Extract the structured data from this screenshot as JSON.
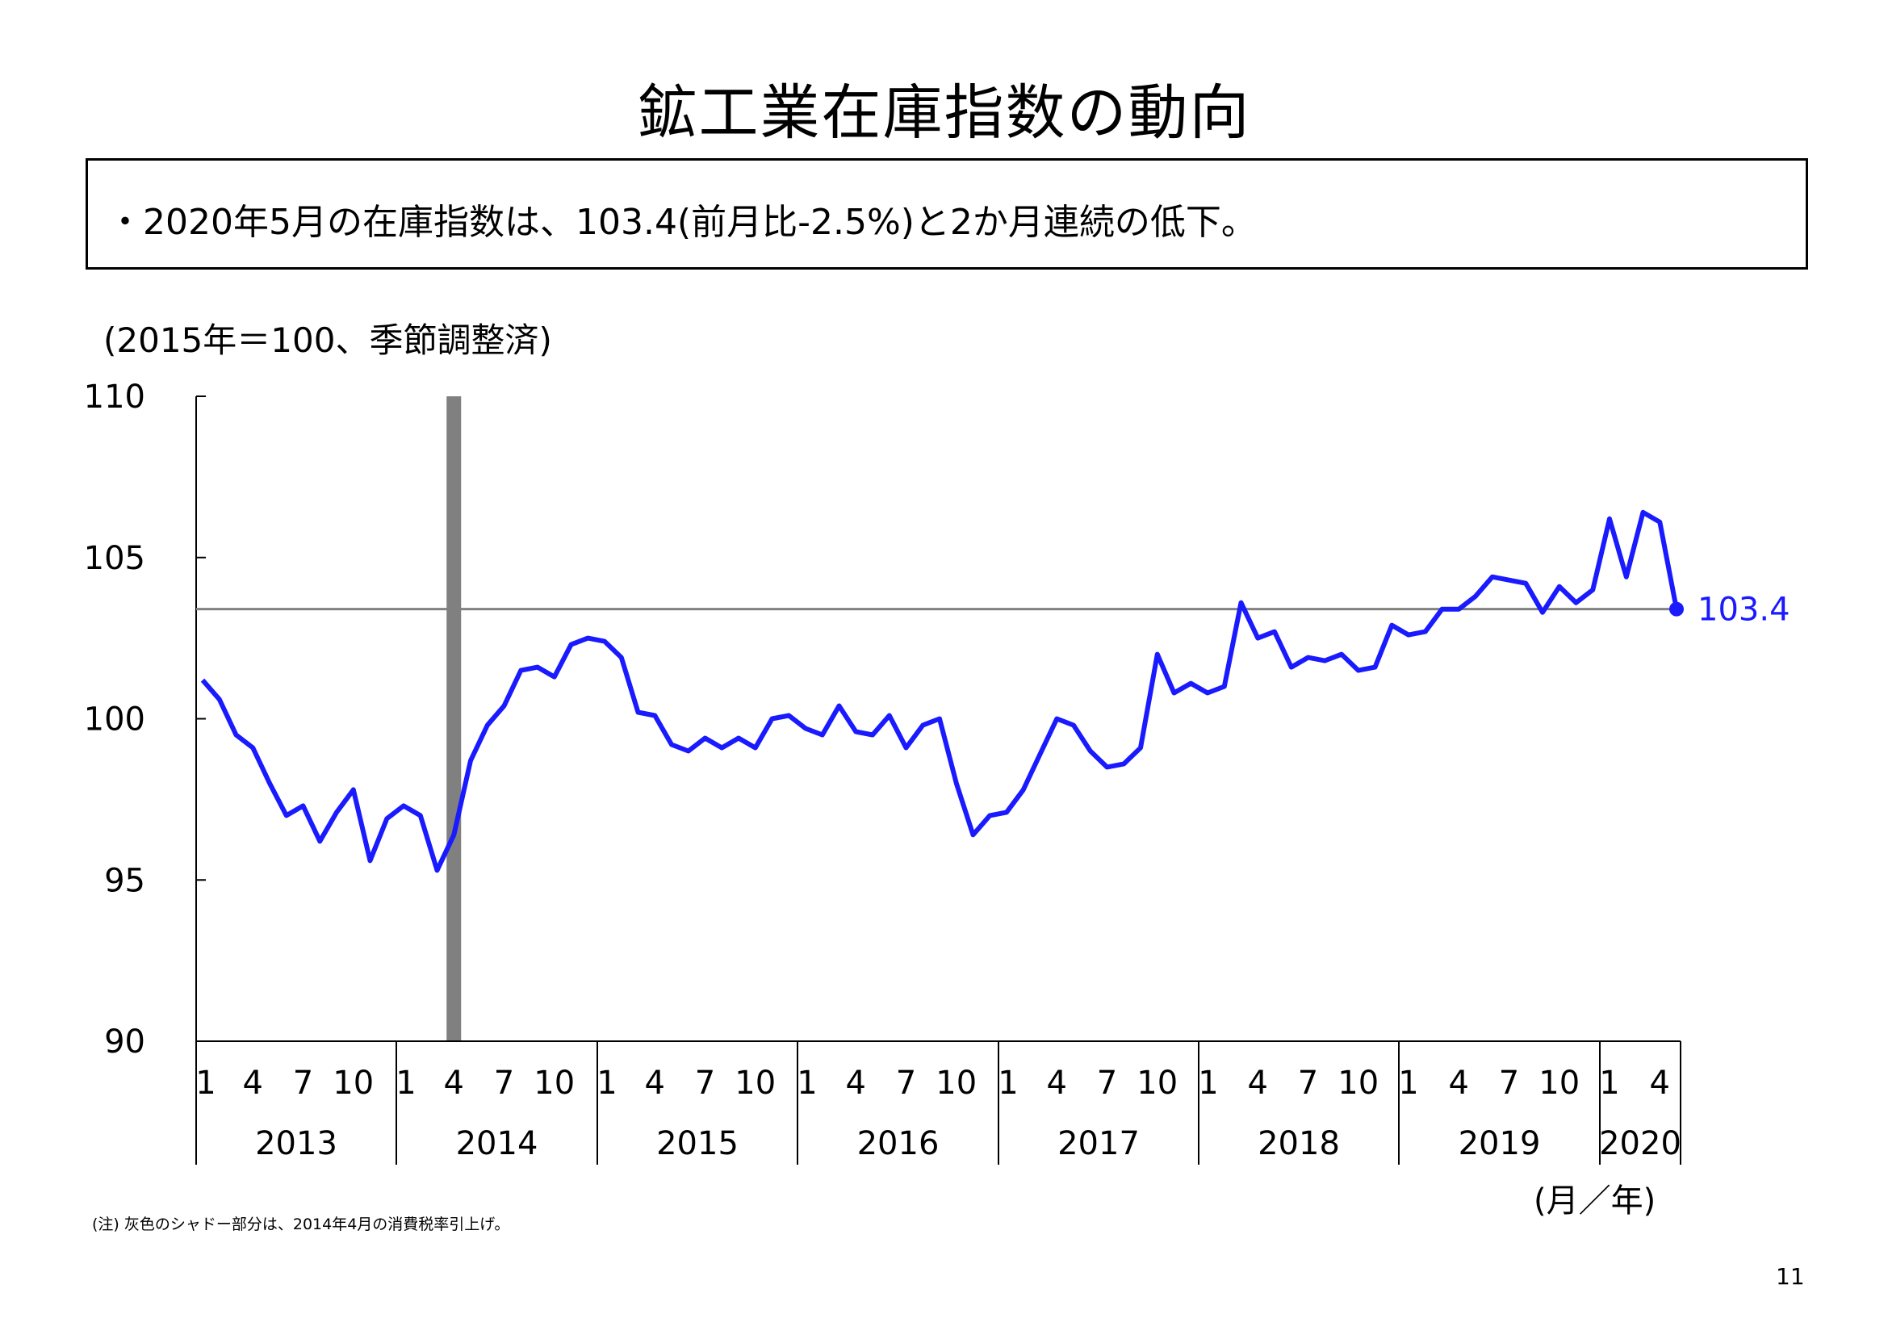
{
  "page": {
    "title": "鉱工業在庫指数の動向",
    "summary": "・2020年5月の在庫指数は、103.4(前月比-2.5%)と2か月連続の低下。",
    "unit_label": "(2015年＝100、季節調整済)",
    "x_unit_label": "(月／年)",
    "note": "(注) 灰色のシャドー部分は、2014年4月の消費税率引上げ。",
    "page_number": "11"
  },
  "colors": {
    "series_line": "#1a1aff",
    "reference_line": "#808080",
    "shade": "#808080",
    "axis": "#000000"
  },
  "chart_data": {
    "type": "line",
    "ylim": [
      90,
      110
    ],
    "yticks": [
      90,
      95,
      100,
      105,
      110
    ],
    "month_tick_labels": [
      "1",
      "4",
      "7",
      "10"
    ],
    "years": [
      "2013",
      "2014",
      "2015",
      "2016",
      "2017",
      "2018",
      "2019",
      "2020"
    ],
    "shade_period": "2014-04",
    "reference_value": 103.4,
    "end_label": "103.4",
    "series": [
      {
        "start": "2013-01",
        "values": [
          101.2,
          100.6,
          99.5,
          99.1,
          98.0,
          97.0,
          97.3,
          96.2,
          97.1,
          97.8,
          95.6,
          96.9,
          97.3,
          97.0,
          95.3,
          96.4,
          98.7,
          99.8,
          100.4,
          101.5,
          101.6,
          101.3,
          102.3,
          102.5,
          102.4,
          101.9,
          100.2,
          100.1,
          99.2,
          99.0,
          99.4,
          99.1,
          99.4,
          99.1,
          100.0,
          100.1,
          99.7,
          99.5,
          100.4,
          99.6,
          99.5,
          100.1,
          99.1,
          99.8,
          100.0,
          98.0,
          96.4,
          97.0,
          97.1,
          97.8,
          98.9,
          100.0,
          99.8,
          99.0,
          98.5,
          98.6,
          99.1,
          102.0,
          100.8,
          101.1,
          100.8,
          101.0,
          103.6,
          102.5,
          102.7,
          101.6,
          101.9,
          101.8,
          102.0,
          101.5,
          101.6,
          102.9,
          102.6,
          102.7,
          103.4,
          103.4,
          103.8,
          104.4,
          104.3,
          104.2,
          103.3,
          104.1,
          103.6,
          104.0,
          106.2,
          104.4,
          106.4,
          106.1,
          103.4
        ]
      }
    ]
  }
}
